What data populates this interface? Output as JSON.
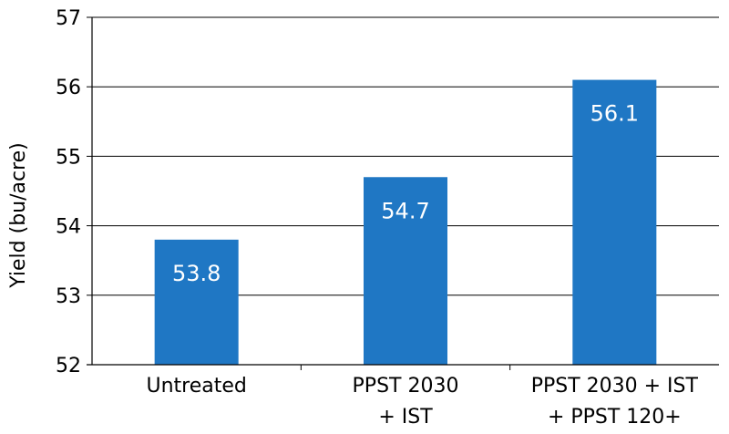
{
  "chart_data": {
    "type": "bar",
    "categories": [
      [
        "Untreated"
      ],
      [
        "PPST 2030",
        "+ IST"
      ],
      [
        "PPST 2030 + IST",
        "+ PPST 120+"
      ]
    ],
    "values": [
      53.8,
      54.7,
      56.1
    ],
    "value_labels": [
      "53.8",
      "54.7",
      "56.1"
    ],
    "title": "",
    "xlabel": "",
    "ylabel": "Yield (bu/acre)",
    "ylim": [
      52,
      57
    ],
    "yticks": [
      52,
      53,
      54,
      55,
      56,
      57
    ],
    "grid": true,
    "legend": "none",
    "bar_color": "#1f77c4",
    "value_label_color": "#ffffff"
  }
}
